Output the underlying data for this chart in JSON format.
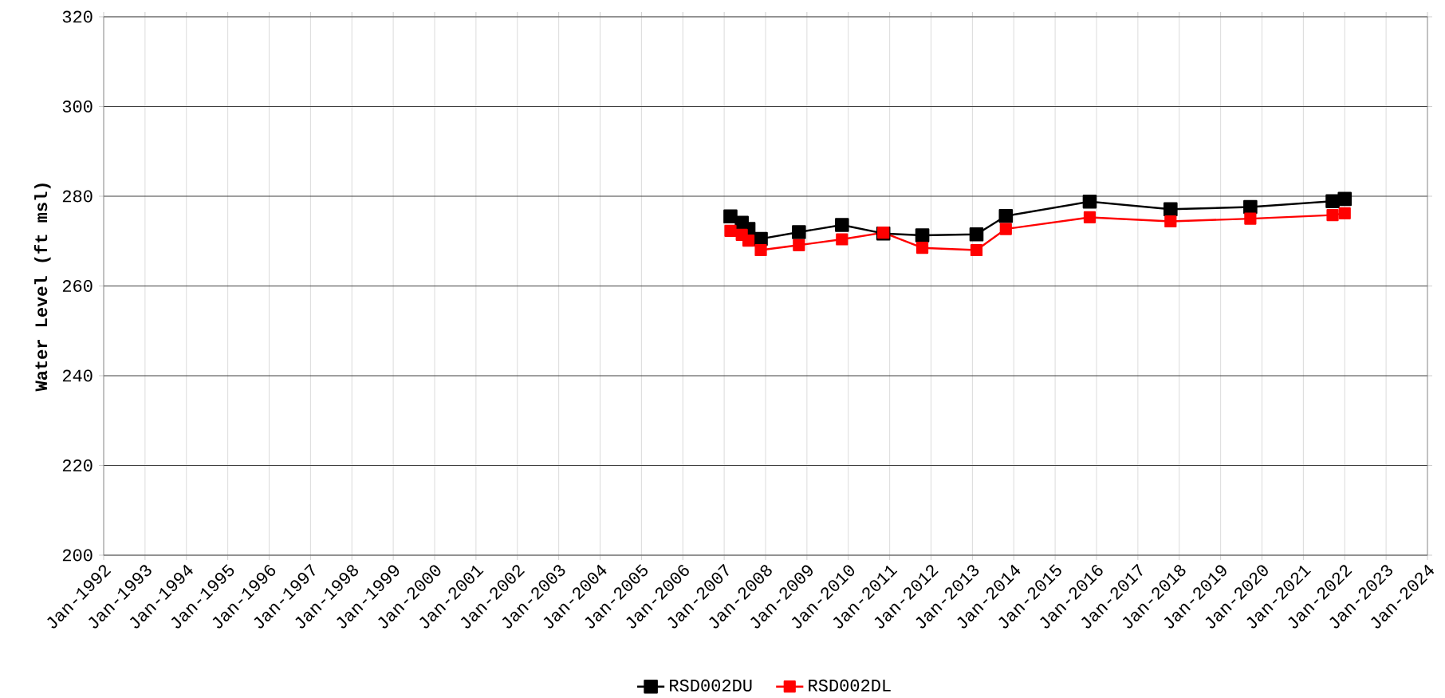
{
  "chart_data": {
    "type": "line",
    "ylabel": "Water Level (ft msl)",
    "x": [
      "2007-02-25",
      "2007-06-05",
      "2007-08-03",
      "2007-11-20",
      "2008-10-22",
      "2009-11-06",
      "2010-11-06",
      "2011-10-16",
      "2013-02-06",
      "2013-10-23",
      "2015-11-02",
      "2017-10-16",
      "2019-09-20",
      "2021-09-16",
      "2022-01-01"
    ],
    "series": [
      {
        "name": "RSD002DU",
        "color": "#000000",
        "values": [
          275.5,
          274.1,
          272.7,
          270.5,
          272.0,
          273.6,
          271.7,
          271.3,
          271.5,
          275.6,
          278.8,
          277.1,
          277.6,
          278.9,
          279.4
        ]
      },
      {
        "name": "RSD002DL",
        "color": "#ff0000",
        "values": [
          272.3,
          271.4,
          270.1,
          268.0,
          269.1,
          270.4,
          271.9,
          268.5,
          268.0,
          272.7,
          275.3,
          274.4,
          275.0,
          275.8,
          276.2
        ]
      }
    ],
    "xlim": [
      "1992-01",
      "2024-01"
    ],
    "xticks": [
      {
        "value": "1992-01",
        "label": "Jan-1992"
      },
      {
        "value": "1993-01",
        "label": "Jan-1993"
      },
      {
        "value": "1994-01",
        "label": "Jan-1994"
      },
      {
        "value": "1995-01",
        "label": "Jan-1995"
      },
      {
        "value": "1996-01",
        "label": "Jan-1996"
      },
      {
        "value": "1997-01",
        "label": "Jan-1997"
      },
      {
        "value": "1998-01",
        "label": "Jan-1998"
      },
      {
        "value": "1999-01",
        "label": "Jan-1999"
      },
      {
        "value": "2000-01",
        "label": "Jan-2000"
      },
      {
        "value": "2001-01",
        "label": "Jan-2001"
      },
      {
        "value": "2002-01",
        "label": "Jan-2002"
      },
      {
        "value": "2003-01",
        "label": "Jan-2003"
      },
      {
        "value": "2004-01",
        "label": "Jan-2004"
      },
      {
        "value": "2005-01",
        "label": "Jan-2005"
      },
      {
        "value": "2006-01",
        "label": "Jan-2006"
      },
      {
        "value": "2007-01",
        "label": "Jan-2007"
      },
      {
        "value": "2008-01",
        "label": "Jan-2008"
      },
      {
        "value": "2009-01",
        "label": "Jan-2009"
      },
      {
        "value": "2010-01",
        "label": "Jan-2010"
      },
      {
        "value": "2011-01",
        "label": "Jan-2011"
      },
      {
        "value": "2012-01",
        "label": "Jan-2012"
      },
      {
        "value": "2013-01",
        "label": "Jan-2013"
      },
      {
        "value": "2014-01",
        "label": "Jan-2014"
      },
      {
        "value": "2015-01",
        "label": "Jan-2015"
      },
      {
        "value": "2016-01",
        "label": "Jan-2016"
      },
      {
        "value": "2017-01",
        "label": "Jan-2017"
      },
      {
        "value": "2018-01",
        "label": "Jan-2018"
      },
      {
        "value": "2019-01",
        "label": "Jan-2019"
      },
      {
        "value": "2020-01",
        "label": "Jan-2020"
      },
      {
        "value": "2021-01",
        "label": "Jan-2021"
      },
      {
        "value": "2022-01",
        "label": "Jan-2022"
      },
      {
        "value": "2023-01",
        "label": "Jan-2023"
      },
      {
        "value": "2024-01",
        "label": "Jan-2024"
      }
    ],
    "ylim": [
      200,
      320
    ],
    "yticks": [
      200,
      220,
      240,
      260,
      280,
      300,
      320
    ],
    "grid": true,
    "legend": "bottom",
    "marker": "square",
    "line_style": "solid"
  }
}
